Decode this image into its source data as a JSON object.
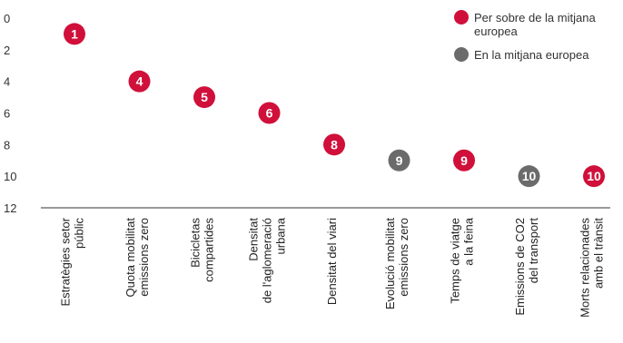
{
  "chart_data": {
    "type": "scatter",
    "title": "",
    "xlabel": "",
    "ylabel": "",
    "ylim": [
      0,
      12
    ],
    "y_inverted": true,
    "y_ticks": [
      0,
      2,
      4,
      6,
      8,
      10,
      12
    ],
    "grid": false,
    "legend_position": "top-right",
    "categories": [
      [
        "Estratègies setor",
        "públic"
      ],
      [
        "Quota mobilitat",
        "emissions zero"
      ],
      [
        "Bicicletas",
        "compartides"
      ],
      [
        "Densitat",
        "de l'aglomeració",
        "urbana"
      ],
      [
        "Densitat del viari"
      ],
      [
        "Evolució mobilitat",
        "emissions zero"
      ],
      [
        "Temps de viatge",
        "a la feina"
      ],
      [
        "Emissions de CO2",
        "del transport"
      ],
      [
        "Morts relacionades",
        "amb el trànsit"
      ]
    ],
    "values": [
      1,
      4,
      5,
      6,
      8,
      9,
      9,
      10,
      10
    ],
    "labels": [
      "1",
      "4",
      "5",
      "6",
      "8",
      "9",
      "9",
      "10",
      "10"
    ],
    "groups": [
      "above",
      "above",
      "above",
      "above",
      "above",
      "average",
      "above",
      "average",
      "above"
    ],
    "series": [
      {
        "key": "above",
        "name": "Per sobre de la mitjana europea",
        "legend_lines": [
          "Per sobre de la mitjana",
          "europea"
        ],
        "color": "#d0103a"
      },
      {
        "key": "average",
        "name": "En la mitjana europea",
        "legend_lines": [
          "En la mitjana europea"
        ],
        "color": "#6b6b6b"
      }
    ]
  }
}
